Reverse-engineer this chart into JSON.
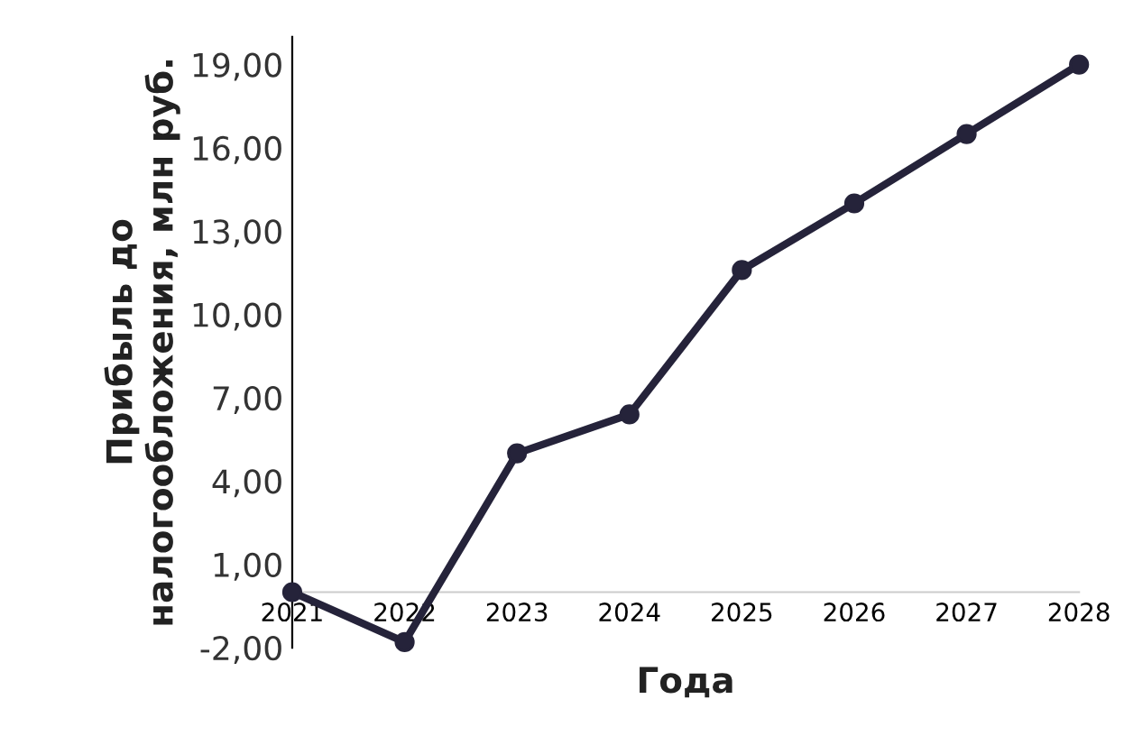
{
  "chart_data": {
    "type": "line",
    "xlabel": "Года",
    "ylabel": "Прибыль до\nналогообложения, млн руб.",
    "categories": [
      "2021",
      "2022",
      "2023",
      "2024",
      "2025",
      "2026",
      "2027",
      "2028"
    ],
    "series": [
      {
        "color": "#25233a",
        "values": [
          0.0,
          -1.8,
          5.0,
          6.4,
          11.6,
          14.0,
          16.5,
          19.0
        ]
      }
    ],
    "ylim": [
      -2,
      20
    ],
    "yticks": [
      {
        "value": -2,
        "label": "-2,00"
      },
      {
        "value": 1,
        "label": "1,00"
      },
      {
        "value": 4,
        "label": "4,00"
      },
      {
        "value": 7,
        "label": "7,00"
      },
      {
        "value": 10,
        "label": "10,00"
      },
      {
        "value": 13,
        "label": "13,00"
      },
      {
        "value": 16,
        "label": "16,00"
      },
      {
        "value": 19,
        "label": "19,00"
      }
    ],
    "marker": "circle",
    "line_style": "solid",
    "grid": false,
    "legend": false
  }
}
